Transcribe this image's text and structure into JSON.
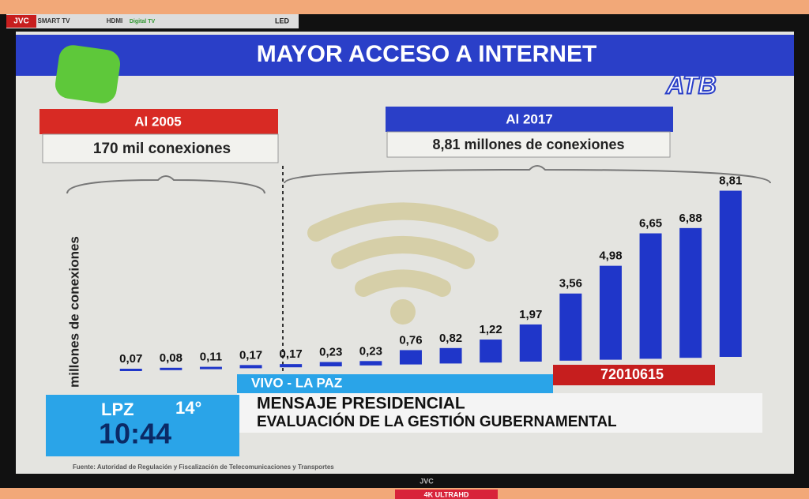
{
  "chart_data": {
    "type": "bar",
    "title": "MAYOR ACCESO A INTERNET",
    "y_label": "millones de conexiones",
    "left_heading": "Al 2005",
    "left_note": "170 mil conexiones",
    "right_heading": "Al 2017",
    "right_note": "8,81 millones de conexiones",
    "source": "Fuente: Autoridad de Regulación y Fiscalización de Telecomunicaciones y Transportes",
    "categories": [
      null,
      null,
      null,
      null,
      null,
      null,
      null,
      null,
      null,
      null,
      null,
      null,
      null,
      null,
      null,
      null
    ],
    "values": [
      0.07,
      0.08,
      0.11,
      0.17,
      0.17,
      0.23,
      0.23,
      0.76,
      0.82,
      1.22,
      1.97,
      3.56,
      4.98,
      6.65,
      6.88,
      8.81
    ],
    "value_labels": [
      "0,07",
      "0,08",
      "0,11",
      "0,17",
      "0,17",
      "0,23",
      "0,23",
      "0,76",
      "0,82",
      "1,22",
      "1,97",
      "3,56",
      "4,98",
      "6,65",
      "6,88",
      "8,81"
    ],
    "color": "#1f36c9",
    "ylim": [
      0,
      9
    ]
  },
  "screen": {
    "channel": "ATB",
    "live": "VIVO - LA PAZ",
    "city": "LPZ",
    "temp": "14°",
    "time": "10:44",
    "headline": "MENSAJE PRESIDENCIAL",
    "subheadline": "EVALUACIÓN DE LA GESTIÓN GUBERNAMENTAL",
    "phone": "72010615"
  },
  "tv": {
    "brand": "JVC",
    "badges": [
      "SMART TV",
      "HDMI",
      "Digital TV",
      "LED"
    ],
    "bottom_brand": "JVC",
    "sticker": "4K ULTRAHD"
  }
}
